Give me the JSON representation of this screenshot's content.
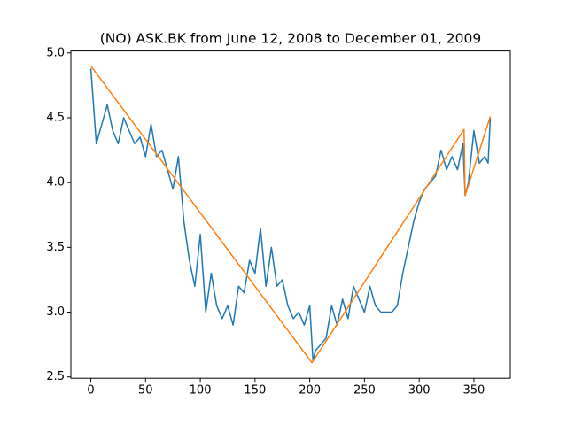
{
  "chart_data": {
    "type": "line",
    "title": "(NO) ASK.BK from June 12, 2008 to December 01, 2009",
    "series": [
      {
        "color": "#1f77b4",
        "x": [
          0,
          5,
          10,
          15,
          20,
          25,
          30,
          35,
          40,
          45,
          50,
          55,
          60,
          65,
          70,
          75,
          80,
          85,
          90,
          95,
          100,
          105,
          110,
          115,
          120,
          125,
          130,
          135,
          140,
          145,
          150,
          155,
          160,
          165,
          170,
          175,
          180,
          185,
          190,
          195,
          200,
          203,
          205,
          210,
          215,
          220,
          225,
          230,
          235,
          240,
          245,
          250,
          255,
          260,
          265,
          270,
          275,
          280,
          285,
          290,
          295,
          300,
          305,
          310,
          315,
          320,
          325,
          330,
          335,
          340,
          342,
          345,
          350,
          355,
          360,
          363,
          365
        ],
        "values": [
          4.88,
          4.3,
          4.45,
          4.6,
          4.4,
          4.3,
          4.5,
          4.4,
          4.3,
          4.35,
          4.2,
          4.45,
          4.2,
          4.25,
          4.1,
          3.95,
          4.2,
          3.7,
          3.4,
          3.2,
          3.6,
          3.0,
          3.3,
          3.05,
          2.95,
          3.05,
          2.9,
          3.2,
          3.15,
          3.4,
          3.3,
          3.65,
          3.2,
          3.5,
          3.2,
          3.25,
          3.05,
          2.95,
          3.0,
          2.9,
          3.05,
          2.62,
          2.7,
          2.75,
          2.8,
          3.05,
          2.9,
          3.1,
          2.95,
          3.2,
          3.1,
          3.0,
          3.2,
          3.05,
          3.0,
          3.0,
          3.0,
          3.05,
          3.3,
          3.5,
          3.7,
          3.85,
          3.95,
          4.0,
          4.05,
          4.25,
          4.1,
          4.2,
          4.1,
          4.3,
          3.9,
          4.0,
          4.4,
          4.15,
          4.2,
          4.15,
          4.5
        ]
      },
      {
        "color": "#ff7f0e",
        "x": [
          0,
          202,
          341,
          342,
          365
        ],
        "values": [
          4.9,
          2.61,
          4.41,
          3.9,
          4.51
        ]
      }
    ],
    "xlim": [
      -18.25,
      383.25
    ],
    "xticks": [
      0,
      50,
      100,
      150,
      200,
      250,
      300,
      350
    ],
    "ylim": [
      2.49,
      5.015
    ],
    "yticks": [
      2.5,
      {
        "value": 3,
        "label": "3.0"
      },
      3.5,
      {
        "value": 4,
        "label": "4.0"
      },
      4.5,
      {
        "value": 5,
        "label": "5.0"
      }
    ]
  }
}
